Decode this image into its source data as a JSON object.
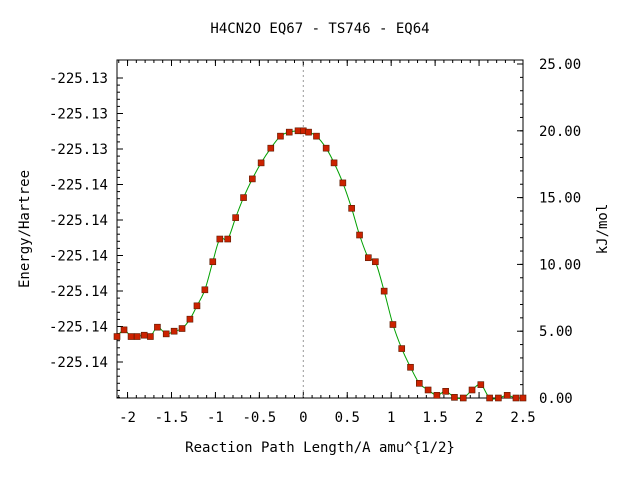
{
  "chart_data": {
    "type": "line",
    "title": "H4CN2O   EQ67 - TS746 - EQ64",
    "xlabel": "Reaction Path Length/A amu^{1/2}",
    "ylabel_left": "Energy/Hartree",
    "ylabel_right": "kJ/mol",
    "x_ticks": [
      "-2",
      "-1.5",
      "-1",
      "-0.5",
      "0",
      "0.5",
      "1",
      "1.5",
      "2",
      "2.5"
    ],
    "x_tick_values": [
      -2,
      -1.5,
      -1,
      -0.5,
      0,
      0.5,
      1,
      1.5,
      2,
      2.5
    ],
    "xlim": [
      -2.12,
      2.5
    ],
    "left_ticks": [
      "-225.14",
      "-225.14",
      "-225.14",
      "-225.14",
      "-225.14",
      "-225.14",
      "-225.13",
      "-225.13",
      "-225.13"
    ],
    "right_ticks": [
      "0.00",
      "5.00",
      "10.00",
      "15.00",
      "20.00",
      "25.00"
    ],
    "right_tick_values": [
      0,
      5,
      10,
      15,
      20,
      25
    ],
    "ylim_kjmol": [
      0,
      25.3
    ],
    "ts_marker_x": 0,
    "colors": {
      "line": "#00a000",
      "marker": "#cc2200",
      "marker_edge": "#5a1a00",
      "ts_line": "#999999"
    },
    "series": [
      {
        "x": [
          -2.12,
          -2.04,
          -1.96,
          -1.89,
          -1.81,
          -1.74,
          -1.66,
          -1.56,
          -1.47,
          -1.38,
          -1.29,
          -1.21,
          -1.12,
          -1.03,
          -0.95,
          -0.86,
          -0.77,
          -0.68,
          -0.58,
          -0.48,
          -0.37,
          -0.26,
          -0.16,
          -0.06,
          0.0,
          0.06,
          0.15,
          0.26,
          0.35,
          0.45,
          0.55,
          0.64,
          0.74,
          0.82,
          0.92,
          1.02,
          1.12,
          1.22,
          1.32,
          1.42,
          1.52,
          1.62,
          1.72,
          1.82,
          1.92,
          2.02,
          2.12,
          2.22,
          2.32,
          2.42,
          2.5
        ],
        "y": [
          4.6,
          5.1,
          4.6,
          4.6,
          4.7,
          4.6,
          5.3,
          4.8,
          5.0,
          5.2,
          5.9,
          6.9,
          8.1,
          10.2,
          11.9,
          11.9,
          13.5,
          15.0,
          16.4,
          17.6,
          18.7,
          19.6,
          19.9,
          20.0,
          20.0,
          19.9,
          19.6,
          18.7,
          17.6,
          16.1,
          14.2,
          12.2,
          10.5,
          10.2,
          8.0,
          5.5,
          3.7,
          2.3,
          1.1,
          0.6,
          0.2,
          0.5,
          0.05,
          0.0,
          0.6,
          1.0,
          0.0,
          0.0,
          0.2,
          0.0,
          0.0
        ]
      }
    ]
  }
}
